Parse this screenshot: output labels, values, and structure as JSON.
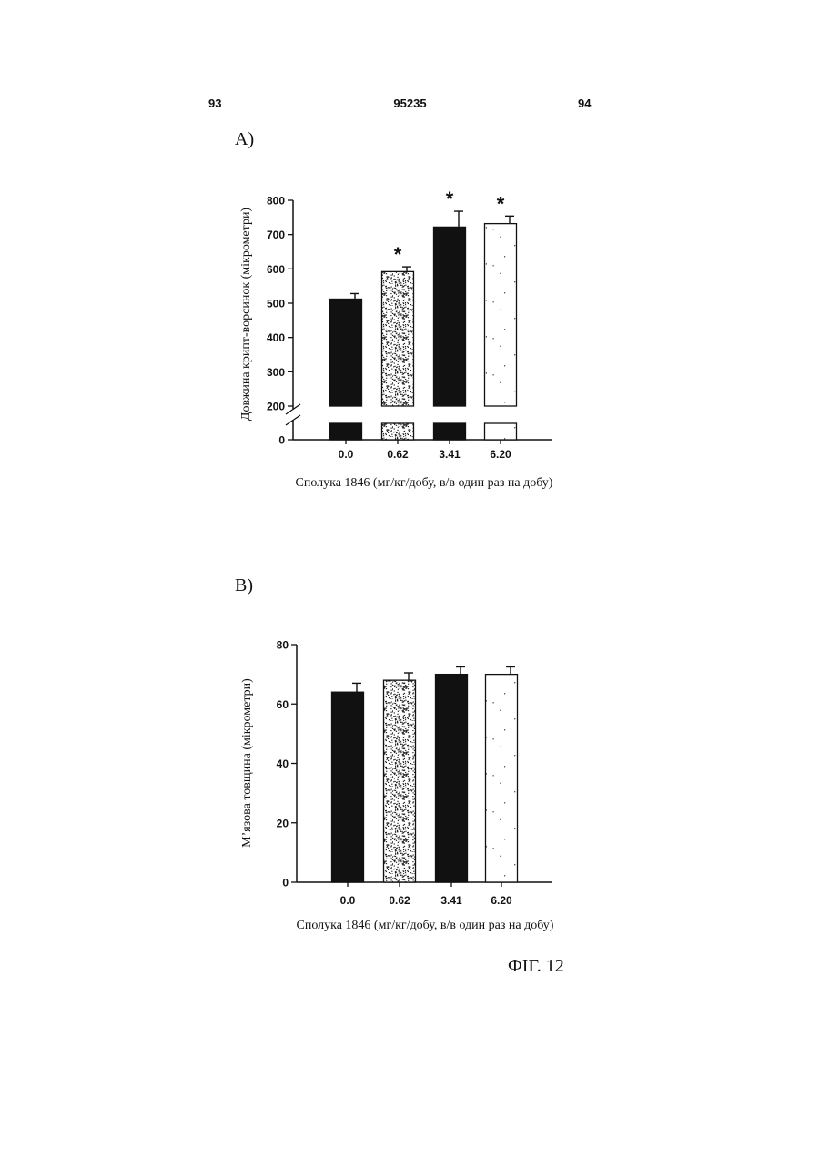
{
  "header": {
    "left_page": "93",
    "doc_number": "95235",
    "right_page": "94"
  },
  "figure_caption": "ФІГ. 12",
  "colors": {
    "dark_bar": "#111111",
    "speckle_light": "#ffffff",
    "white_bar": "#ffffff",
    "axis": "#111111"
  },
  "chart_data": [
    {
      "panel_label": "A)",
      "type": "bar",
      "categories": [
        "0.0",
        "0.62",
        "3.41",
        "6.20"
      ],
      "values": [
        512,
        592,
        722,
        732
      ],
      "errors": [
        16,
        14,
        46,
        22
      ],
      "significance": [
        "",
        "*",
        "*",
        "*"
      ],
      "bar_styles": [
        "dark",
        "speckle",
        "dark",
        "white"
      ],
      "xlabel": "Сполука 1846 (мг/кг/добу, в/в один раз на добу)",
      "ylabel": "Довжина крипт-ворсинок (мікрометри)",
      "ylim": [
        0,
        800
      ],
      "axis_break": [
        0,
        200
      ],
      "yticks": [
        0,
        200,
        300,
        400,
        500,
        600,
        700,
        800
      ],
      "grid": false
    },
    {
      "panel_label": "B)",
      "type": "bar",
      "categories": [
        "0.0",
        "0.62",
        "3.41",
        "6.20"
      ],
      "values": [
        64,
        68,
        70,
        70
      ],
      "errors": [
        3,
        2.5,
        2.5,
        2.5
      ],
      "significance": [
        "",
        "",
        "",
        ""
      ],
      "bar_styles": [
        "dark",
        "speckle",
        "dark",
        "white"
      ],
      "xlabel": "Сполука 1846 (мг/кг/добу, в/в один раз на добу)",
      "ylabel": "М’язова товщина (мікрометри)",
      "ylim": [
        0,
        80
      ],
      "yticks": [
        0,
        20,
        40,
        60,
        80
      ],
      "grid": false
    }
  ]
}
